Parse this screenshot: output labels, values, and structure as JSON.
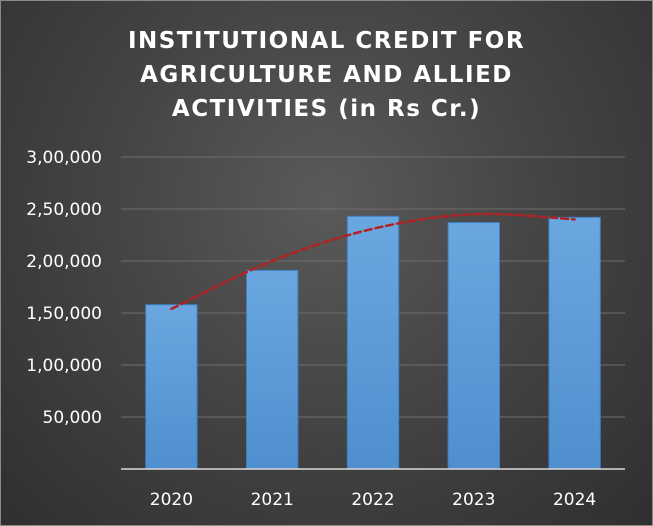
{
  "chart_data": {
    "type": "bar",
    "title_lines": [
      "INSTITUTIONAL CREDIT FOR",
      "AGRICULTURE AND ALLIED",
      "ACTIVITIES (in Rs Cr.)"
    ],
    "categories": [
      "2020",
      "2021",
      "2022",
      "2023",
      "2024"
    ],
    "values": [
      158000,
      191000,
      243000,
      237000,
      242000
    ],
    "ylim": [
      0,
      300000
    ],
    "y_ticks": [
      50000,
      100000,
      150000,
      200000,
      250000,
      300000
    ],
    "y_tick_labels": [
      "50,000",
      "1,00,000",
      "1,50,000",
      "2,00,000",
      "2,50,000",
      "3,00,000"
    ],
    "xlabel": "",
    "ylabel": "",
    "grid": true,
    "legend": "none",
    "trendline": {
      "type": "polynomial",
      "style": "dashed",
      "values": [
        154000,
        200000,
        231000,
        245000,
        240000
      ]
    },
    "colors": {
      "bar": "#5b9bd5",
      "bar_edge": "#3f7fbf",
      "trendline": "#b22222",
      "grid": "#6e6e6e",
      "axis": "#d9d9d9",
      "text": "#ffffff"
    }
  }
}
